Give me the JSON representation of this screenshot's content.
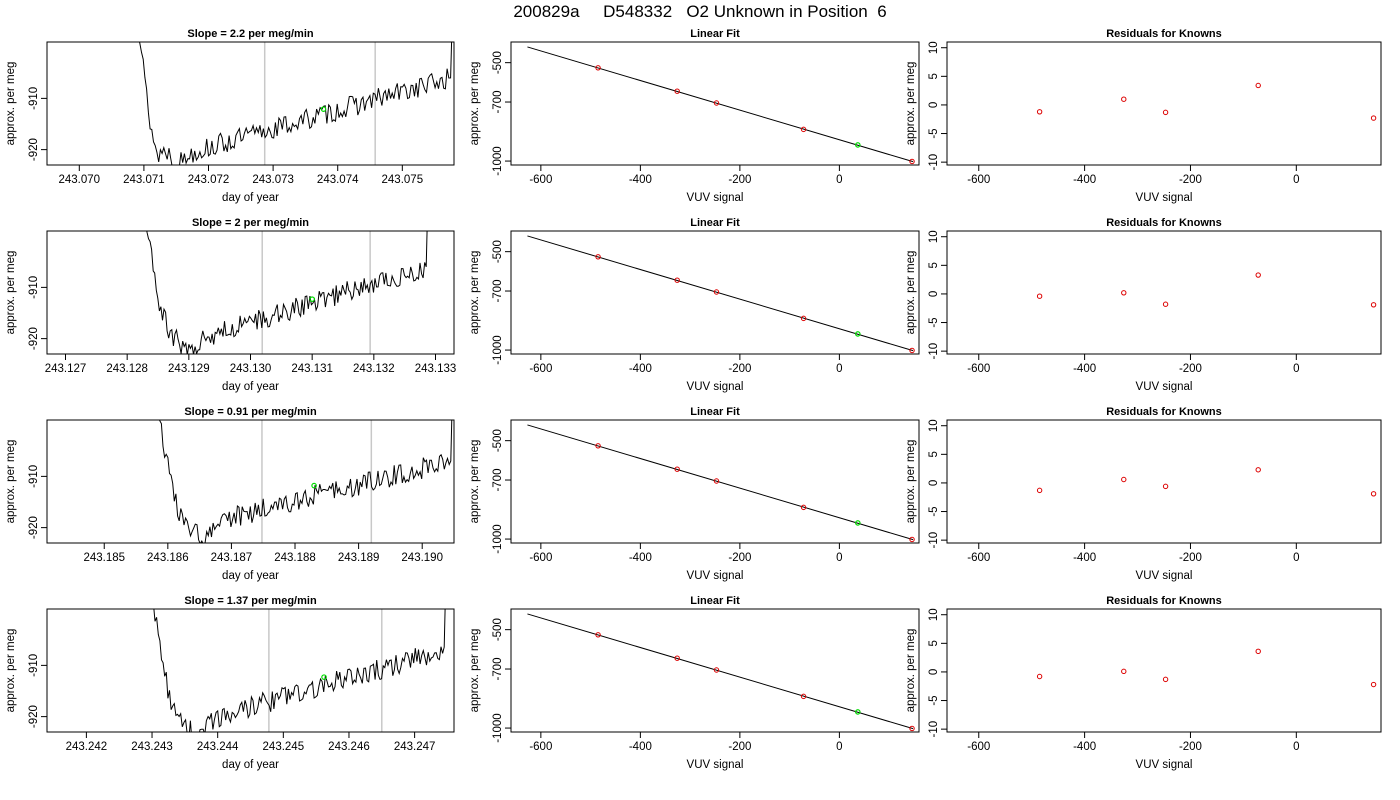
{
  "page_title": "200829a     D548332   O2 Unknown in Position  6",
  "colors": {
    "trace": "#000000",
    "vline": "#c8c8c8",
    "unknown": "#00dd00",
    "known": "#dd0000",
    "fit": "#000000"
  },
  "chart_data": [
    {
      "type": "line",
      "title": "Slope =  2.2  per meg/min",
      "xlabel": "day of year",
      "ylabel": "approx. per meg",
      "xlim": [
        243.0695,
        243.0758
      ],
      "ylim": [
        -923,
        -899
      ],
      "xticks": [
        "243.070",
        "243.071",
        "243.072",
        "243.073",
        "243.074",
        "243.075"
      ],
      "yticks": [
        "-910",
        "-920"
      ],
      "vlines": [
        243.07287,
        243.07458
      ],
      "unknown_point": {
        "x": 243.07378,
        "y": -912.1
      },
      "series": [
        {
          "start": 243.07075,
          "end": 243.0758,
          "points": [
            [
              243.07075,
              -880
            ],
            [
              243.071,
              -905
            ],
            [
              243.0711,
              -915
            ],
            [
              243.0712,
              -921
            ],
            [
              243.07135,
              -920
            ],
            [
              243.0715,
              -923
            ],
            [
              243.07175,
              -920.5
            ],
            [
              243.07575,
              -906
            ],
            [
              243.0758,
              -880
            ]
          ]
        }
      ]
    },
    {
      "type": "scatter",
      "title": "Linear Fit",
      "xlabel": "VUV signal",
      "ylabel": "approx. per meg",
      "xlim": [
        -660,
        160
      ],
      "ylim": [
        -1020,
        -395
      ],
      "xticks": [
        "-600",
        "-400",
        "-200",
        "0"
      ],
      "yticks": [
        "-500",
        "-700",
        "-1000"
      ],
      "fit_line": [
        [
          -627,
          -420
        ],
        [
          148,
          -1003
        ]
      ],
      "knowns": [
        [
          -485,
          -526
        ],
        [
          -326,
          -645
        ],
        [
          -247,
          -705
        ],
        [
          -72,
          -839
        ],
        [
          146,
          -1002
        ]
      ],
      "unknown_point": [
        37,
        -918
      ]
    },
    {
      "type": "scatter",
      "title": "Residuals for Knowns",
      "xlabel": "VUV signal",
      "ylabel": "approx. per meg",
      "xlim": [
        -660,
        160
      ],
      "ylim": [
        -10.5,
        11
      ],
      "xticks": [
        "-600",
        "-400",
        "-200",
        "0"
      ],
      "yticks": [
        "-10",
        "-5",
        "0",
        "5",
        "10"
      ],
      "knowns": [
        [
          -485,
          -1.2
        ],
        [
          -326,
          1.0
        ],
        [
          -247,
          -1.3
        ],
        [
          -72,
          3.4
        ],
        [
          146,
          -2.3
        ]
      ]
    },
    {
      "type": "line",
      "title": "Slope =  2  per meg/min",
      "xlabel": "day of year",
      "ylabel": "approx. per meg",
      "xlim": [
        243.1267,
        243.1333
      ],
      "ylim": [
        -923,
        -899
      ],
      "xticks": [
        "243.127",
        "243.128",
        "243.129",
        "243.130",
        "243.131",
        "243.132",
        "243.133"
      ],
      "yticks": [
        "-910",
        "-920"
      ],
      "vlines": [
        243.13019,
        243.13194
      ],
      "unknown_point": {
        "x": 243.131,
        "y": -912.3
      },
      "series": [
        {
          "start": 243.12812,
          "end": 243.1329,
          "points": [
            [
              243.12812,
              -880
            ],
            [
              243.1284,
              -905
            ],
            [
              243.12855,
              -915
            ],
            [
              243.1287,
              -919
            ],
            [
              243.12895,
              -922
            ],
            [
              243.1291,
              -921
            ],
            [
              243.12925,
              -920
            ],
            [
              243.12945,
              -919
            ],
            [
              243.13285,
              -906
            ],
            [
              243.1329,
              -880
            ]
          ]
        }
      ]
    },
    {
      "type": "scatter",
      "title": "Linear Fit",
      "xlabel": "VUV signal",
      "ylabel": "approx. per meg",
      "xlim": [
        -660,
        160
      ],
      "ylim": [
        -1020,
        -395
      ],
      "xticks": [
        "-600",
        "-400",
        "-200",
        "0"
      ],
      "yticks": [
        "-500",
        "-700",
        "-1000"
      ],
      "fit_line": [
        [
          -627,
          -420
        ],
        [
          148,
          -1003
        ]
      ],
      "knowns": [
        [
          -485,
          -526
        ],
        [
          -326,
          -645
        ],
        [
          -247,
          -705
        ],
        [
          -72,
          -839
        ],
        [
          146,
          -1002
        ]
      ],
      "unknown_point": [
        37,
        -918
      ]
    },
    {
      "type": "scatter",
      "title": "Residuals for Knowns",
      "xlabel": "VUV signal",
      "ylabel": "approx. per meg",
      "xlim": [
        -660,
        160
      ],
      "ylim": [
        -10.5,
        11
      ],
      "xticks": [
        "-600",
        "-400",
        "-200",
        "0"
      ],
      "yticks": [
        "-10",
        "-5",
        "0",
        "5",
        "10"
      ],
      "knowns": [
        [
          -485,
          -0.4
        ],
        [
          -326,
          0.2
        ],
        [
          -247,
          -1.8
        ],
        [
          -72,
          3.3
        ],
        [
          146,
          -1.9
        ]
      ]
    },
    {
      "type": "line",
      "title": "Slope =  0.91  per meg/min",
      "xlabel": "day of year",
      "ylabel": "approx. per meg",
      "xlim": [
        243.1841,
        243.1905
      ],
      "ylim": [
        -923,
        -899
      ],
      "xticks": [
        "243.185",
        "243.186",
        "243.187",
        "243.188",
        "243.189",
        "243.190"
      ],
      "yticks": [
        "-910",
        "-920"
      ],
      "vlines": [
        243.18748,
        243.1892
      ],
      "unknown_point": {
        "x": 243.1883,
        "y": -911.8
      },
      "series": [
        {
          "start": 243.18567,
          "end": 243.1905,
          "points": [
            [
              243.18567,
              -880
            ],
            [
              243.18595,
              -905
            ],
            [
              243.1861,
              -914
            ],
            [
              243.18625,
              -919
            ],
            [
              243.18645,
              -921
            ],
            [
              243.1866,
              -922
            ],
            [
              243.1868,
              -920
            ],
            [
              243.187,
              -918
            ],
            [
              243.19045,
              -907
            ],
            [
              243.1905,
              -880
            ]
          ]
        }
      ]
    },
    {
      "type": "scatter",
      "title": "Linear Fit",
      "xlabel": "VUV signal",
      "ylabel": "approx. per meg",
      "xlim": [
        -660,
        160
      ],
      "ylim": [
        -1020,
        -395
      ],
      "xticks": [
        "-600",
        "-400",
        "-200",
        "0"
      ],
      "yticks": [
        "-500",
        "-700",
        "-1000"
      ],
      "fit_line": [
        [
          -627,
          -420
        ],
        [
          148,
          -1003
        ]
      ],
      "knowns": [
        [
          -485,
          -526
        ],
        [
          -326,
          -645
        ],
        [
          -247,
          -705
        ],
        [
          -72,
          -839
        ],
        [
          146,
          -1002
        ]
      ],
      "unknown_point": [
        37,
        -918
      ]
    },
    {
      "type": "scatter",
      "title": "Residuals for Knowns",
      "xlabel": "VUV signal",
      "ylabel": "approx. per meg",
      "xlim": [
        -660,
        160
      ],
      "ylim": [
        -10.5,
        11
      ],
      "xticks": [
        "-600",
        "-400",
        "-200",
        "0"
      ],
      "yticks": [
        "-10",
        "-5",
        "0",
        "5",
        "10"
      ],
      "knowns": [
        [
          -485,
          -1.3
        ],
        [
          -326,
          0.6
        ],
        [
          -247,
          -0.6
        ],
        [
          -72,
          2.3
        ],
        [
          146,
          -1.9
        ]
      ]
    },
    {
      "type": "line",
      "title": "Slope =  1.37  per meg/min",
      "xlabel": "day of year",
      "ylabel": "approx. per meg",
      "xlim": [
        243.2414,
        243.2476
      ],
      "ylim": [
        -923,
        -899
      ],
      "xticks": [
        "243.242",
        "243.243",
        "243.244",
        "243.245",
        "243.246",
        "243.247"
      ],
      "yticks": [
        "-910",
        "-920"
      ],
      "vlines": [
        243.24478,
        243.2465
      ],
      "unknown_point": {
        "x": 243.24562,
        "y": -912.3
      },
      "series": [
        {
          "start": 243.24285,
          "end": 243.2475,
          "points": [
            [
              243.24285,
              -880
            ],
            [
              243.2431,
              -905
            ],
            [
              243.24325,
              -915
            ],
            [
              243.2434,
              -921
            ],
            [
              243.2436,
              -923
            ],
            [
              243.2438,
              -922
            ],
            [
              243.244,
              -920
            ],
            [
              243.24745,
              -907
            ],
            [
              243.2475,
              -880
            ]
          ]
        }
      ]
    },
    {
      "type": "scatter",
      "title": "Linear Fit",
      "xlabel": "VUV signal",
      "ylabel": "approx. per meg",
      "xlim": [
        -660,
        160
      ],
      "ylim": [
        -1020,
        -395
      ],
      "xticks": [
        "-600",
        "-400",
        "-200",
        "0"
      ],
      "yticks": [
        "-500",
        "-700",
        "-1000"
      ],
      "fit_line": [
        [
          -627,
          -420
        ],
        [
          148,
          -1003
        ]
      ],
      "knowns": [
        [
          -485,
          -526
        ],
        [
          -326,
          -645
        ],
        [
          -247,
          -705
        ],
        [
          -72,
          -839
        ],
        [
          146,
          -1002
        ]
      ],
      "unknown_point": [
        37,
        -918
      ]
    },
    {
      "type": "scatter",
      "title": "Residuals for Knowns",
      "xlabel": "VUV signal",
      "ylabel": "approx. per meg",
      "xlim": [
        -660,
        160
      ],
      "ylim": [
        -10.5,
        11
      ],
      "xticks": [
        "-600",
        "-400",
        "-200",
        "0"
      ],
      "yticks": [
        "-10",
        "-5",
        "0",
        "5",
        "10"
      ],
      "knowns": [
        [
          -485,
          -0.8
        ],
        [
          -326,
          0.1
        ],
        [
          -247,
          -1.3
        ],
        [
          -72,
          3.6
        ],
        [
          146,
          -2.2
        ]
      ]
    }
  ]
}
